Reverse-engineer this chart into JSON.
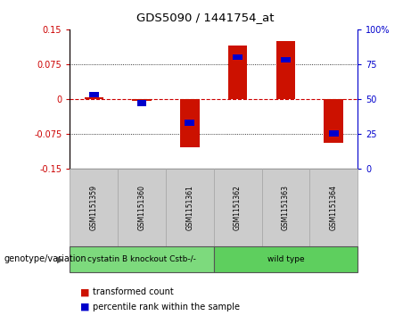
{
  "title": "GDS5090 / 1441754_at",
  "samples": [
    "GSM1151359",
    "GSM1151360",
    "GSM1151361",
    "GSM1151362",
    "GSM1151363",
    "GSM1151364"
  ],
  "red_values": [
    0.003,
    -0.005,
    -0.105,
    0.115,
    0.125,
    -0.095
  ],
  "blue_values_pct": [
    53,
    47,
    33,
    80,
    78,
    25
  ],
  "groups": [
    {
      "label": "cystatin B knockout Cstb-/-",
      "indices": [
        0,
        1,
        2
      ],
      "color": "#7dda7d"
    },
    {
      "label": "wild type",
      "indices": [
        3,
        4,
        5
      ],
      "color": "#5ecf5e"
    }
  ],
  "ylim_left": [
    -0.15,
    0.15
  ],
  "ylim_right": [
    0,
    100
  ],
  "yticks_left": [
    -0.15,
    -0.075,
    0,
    0.075,
    0.15
  ],
  "yticks_right": [
    0,
    25,
    50,
    75,
    100
  ],
  "ytick_labels_left": [
    "-0.15",
    "-0.075",
    "0",
    "0.075",
    "0.15"
  ],
  "ytick_labels_right": [
    "0",
    "25",
    "50",
    "75",
    "100%"
  ],
  "hlines": [
    0.075,
    0,
    -0.075
  ],
  "bar_width": 0.4,
  "blue_bar_width": 0.2,
  "left_axis_color": "#cc0000",
  "right_axis_color": "#0000cc",
  "bar_red_color": "#cc1100",
  "bar_blue_color": "#0000cc",
  "grid_color": "#000000",
  "zero_line_color": "#cc0000",
  "background_plot": "#ffffff",
  "background_sample": "#cccccc",
  "legend_red_label": "transformed count",
  "legend_blue_label": "percentile rank within the sample",
  "genotype_label": "genotype/variation"
}
